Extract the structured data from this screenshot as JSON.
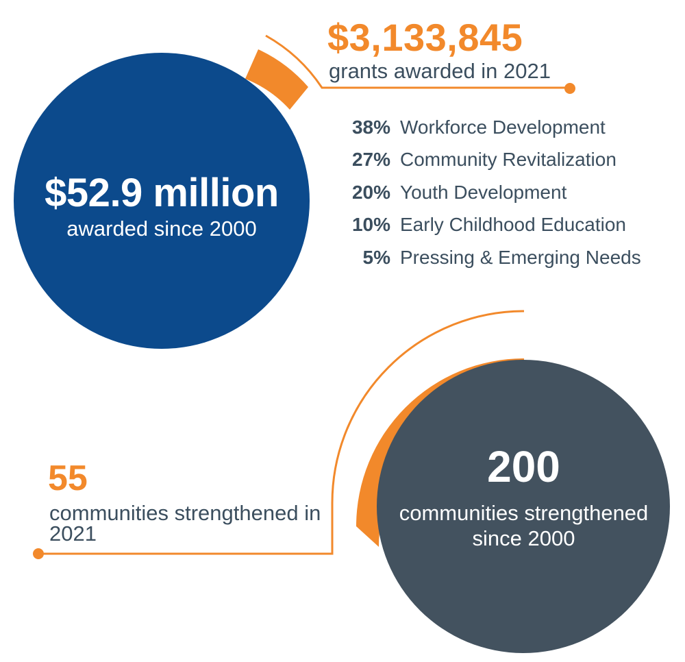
{
  "total_awarded": {
    "amount": "$52.9 million",
    "caption": "awarded since 2000"
  },
  "grants_2021": {
    "amount": "$3,133,845",
    "caption": "grants awarded in 2021",
    "breakdown": [
      {
        "percent": "38%",
        "category": "Workforce Development"
      },
      {
        "percent": "27%",
        "category": "Community Revitalization"
      },
      {
        "percent": "20%",
        "category": "Youth Development"
      },
      {
        "percent": "10%",
        "category": "Early Childhood Education"
      },
      {
        "percent": "5%",
        "category": "Pressing & Emerging Needs"
      }
    ]
  },
  "communities_total": {
    "count": "200",
    "caption": "communities strengthened since 2000"
  },
  "communities_2021": {
    "count": "55",
    "caption": "communities strengthened in 2021"
  },
  "colors": {
    "navy": "#0c4a8c",
    "slate": "#43525f",
    "orange": "#f2892b",
    "text_gray": "#3b4e5e"
  }
}
